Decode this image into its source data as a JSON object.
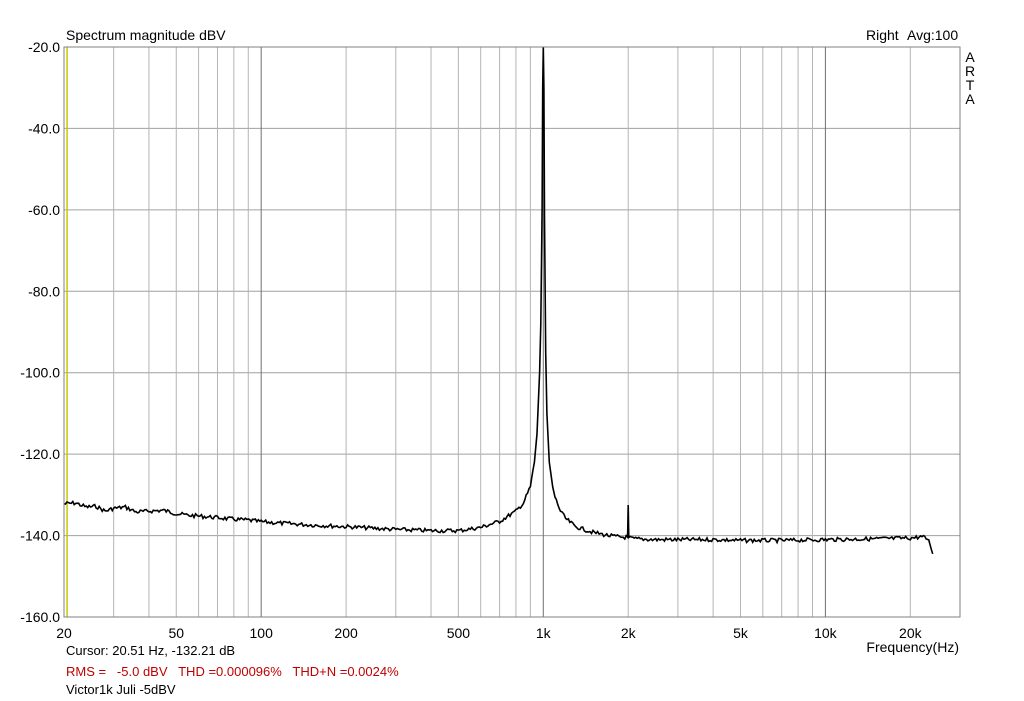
{
  "chart_data": {
    "type": "line",
    "title": "Spectrum magnitude dBV",
    "channel_label": "Right",
    "avg_label": "Avg:100",
    "brand": "ARTA",
    "xlabel": "Frequency(Hz)",
    "ylabel": "",
    "x_scale": "log",
    "xlim": [
      20,
      30000
    ],
    "ylim": [
      -160,
      -20
    ],
    "y_ticks": [
      -20,
      -40,
      -60,
      -80,
      -100,
      -120,
      -140,
      -160
    ],
    "y_tick_labels": [
      "-20.0",
      "-40.0",
      "-60.0",
      "-80.0",
      "-100.0",
      "-120.0",
      "-140.0",
      "-160.0"
    ],
    "x_ticks": [
      20,
      50,
      100,
      200,
      500,
      1000,
      2000,
      5000,
      10000,
      20000
    ],
    "x_tick_labels": [
      "20",
      "50",
      "100",
      "200",
      "500",
      "1k",
      "2k",
      "5k",
      "10k",
      "20k"
    ],
    "grid": true,
    "colors": {
      "trace": "#000000",
      "grid": "#a0a0a0",
      "cursor": "#c8c800",
      "stats": "#c00000"
    },
    "series": [
      {
        "x": [
          20,
          22,
          24,
          26,
          28,
          30,
          33,
          36,
          40,
          45,
          50,
          55,
          60,
          70,
          80,
          90,
          100,
          120,
          150,
          200,
          250,
          300,
          400,
          500,
          600,
          700,
          800,
          850,
          900,
          930,
          950,
          970,
          980,
          990,
          995,
          1000,
          1005,
          1010,
          1020,
          1030,
          1050,
          1080,
          1100,
          1150,
          1200,
          1300,
          1500,
          1700,
          1900,
          1990,
          2000,
          2010,
          2100,
          2500,
          3000,
          4000,
          5000,
          7000,
          10000,
          15000,
          20000,
          22000,
          23000,
          23500,
          24000
        ],
        "y": [
          -132.2,
          -132.0,
          -133.0,
          -132.8,
          -134.0,
          -133.3,
          -133.0,
          -134.2,
          -134.0,
          -133.8,
          -134.6,
          -135.0,
          -135.2,
          -135.6,
          -136.0,
          -136.2,
          -136.6,
          -137.0,
          -137.4,
          -137.8,
          -138.2,
          -138.5,
          -138.8,
          -138.8,
          -138.0,
          -136.5,
          -134.0,
          -132.0,
          -128.0,
          -122.0,
          -115.0,
          -100.0,
          -88.0,
          -60.0,
          -30.0,
          -20.0,
          -30.0,
          -62.0,
          -95.0,
          -110.0,
          -122.0,
          -128.0,
          -130.5,
          -134.0,
          -135.8,
          -137.8,
          -139.2,
          -140.0,
          -140.4,
          -140.4,
          -132.5,
          -140.6,
          -140.8,
          -141.0,
          -141.0,
          -141.0,
          -141.2,
          -141.2,
          -141.0,
          -140.8,
          -140.6,
          -140.3,
          -140.8,
          -142.0,
          -144.5
        ]
      }
    ]
  },
  "cursor": {
    "frequency_hz": 20.51,
    "readout": "Cursor: 20.51 Hz, -132.21 dB"
  },
  "stats": {
    "text": "RMS =   -5.0 dBV   THD =0.000096%   THD+N =0.0024%"
  },
  "footer": {
    "label": "Victor1k Juli -5dBV"
  }
}
